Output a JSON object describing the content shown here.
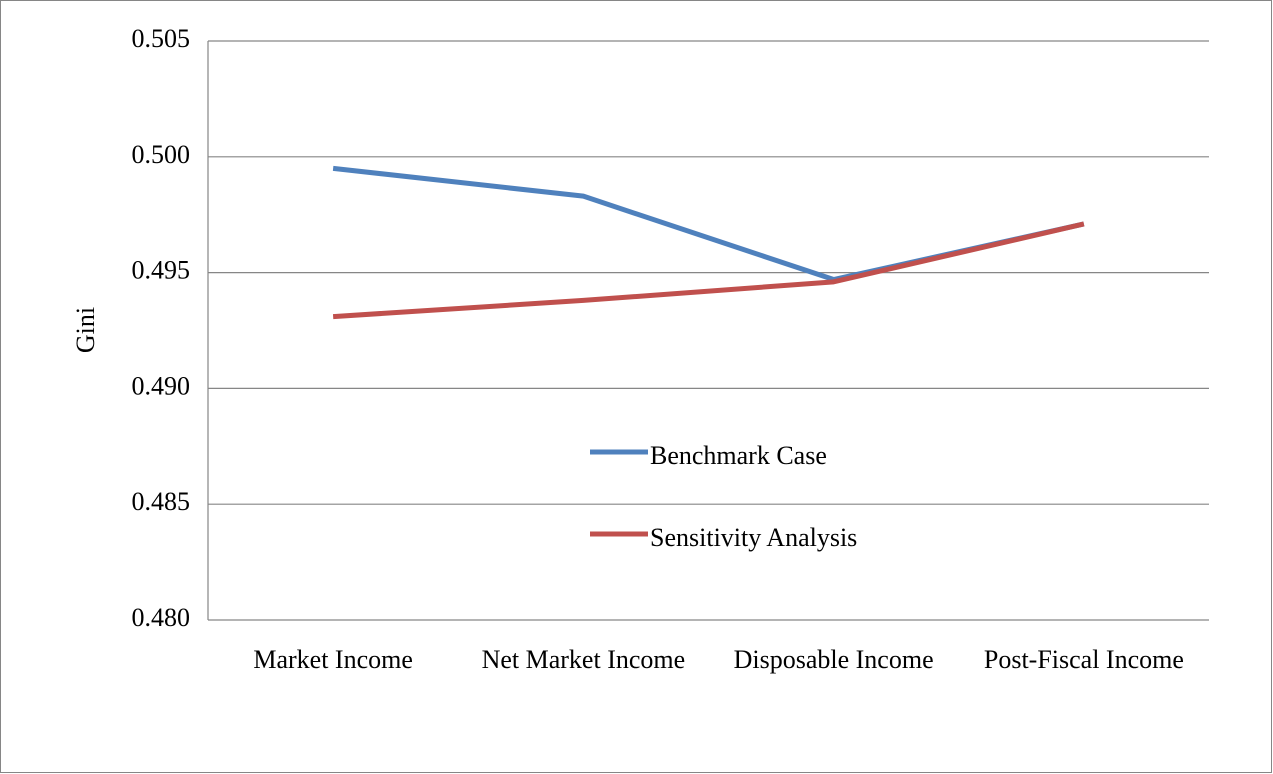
{
  "chart_data": {
    "type": "line",
    "y_label": "Gini",
    "categories": [
      "Market Income",
      "Net Market Income",
      "Disposable Income",
      "Post-Fiscal Income"
    ],
    "series": [
      {
        "name": "Benchmark Case",
        "color": "#4f81bd",
        "values": [
          0.4995,
          0.4983,
          0.4947,
          0.4971
        ]
      },
      {
        "name": "Sensitivity Analysis",
        "color": "#c0504d",
        "values": [
          0.4931,
          0.4938,
          0.4946,
          0.4971
        ]
      }
    ],
    "ylim": [
      0.48,
      0.505
    ],
    "yticks": [
      {
        "value": 0.48,
        "label": "0.480"
      },
      0.485,
      {
        "value": 0.49,
        "label": "0.490"
      },
      0.495,
      {
        "value": 0.5,
        "label": "0.500"
      },
      0.505
    ],
    "grid": true,
    "legend": "center"
  }
}
